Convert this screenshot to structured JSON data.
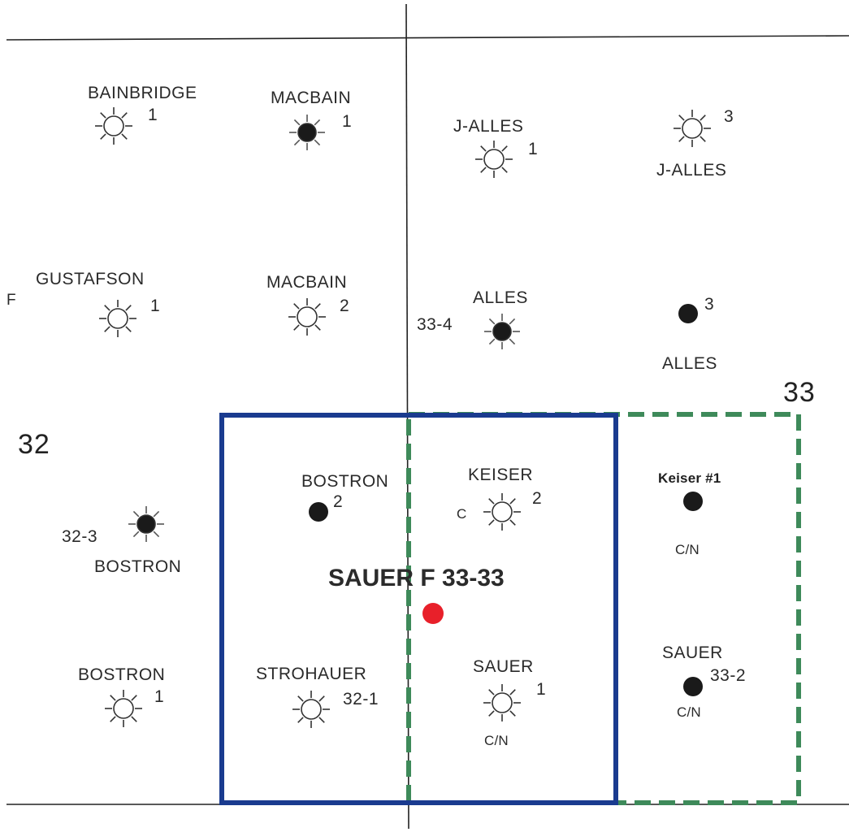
{
  "colors": {
    "section_line": "#222222",
    "blue_box": "#1a3b8f",
    "green_box": "#3e8a5a",
    "proposed_well": "#e8202a",
    "well_dark": "#1a1a1a"
  },
  "map": {
    "title": "SAUER F 33-33",
    "sections": [
      "32",
      "33"
    ],
    "edge_label": "F",
    "wells": [
      {
        "id": "bainbridge-1",
        "name": "BAINBRIDGE",
        "number": "1",
        "symbol": "dry-hole-icon"
      },
      {
        "id": "macbain-1",
        "name": "MACBAIN",
        "number": "1",
        "symbol": "oil-well-icon"
      },
      {
        "id": "j-alles-1",
        "name": "J-ALLES",
        "number": "1",
        "symbol": "dry-hole-icon"
      },
      {
        "id": "j-alles-3",
        "name": "J-ALLES",
        "number": "3",
        "symbol": "dry-hole-icon"
      },
      {
        "id": "gustafson-1",
        "name": "GUSTAFSON",
        "number": "1",
        "symbol": "dry-hole-icon"
      },
      {
        "id": "macbain-2",
        "name": "MACBAIN",
        "number": "2",
        "symbol": "dry-hole-icon"
      },
      {
        "id": "alles-33-4",
        "name": "ALLES",
        "number": "33-4",
        "symbol": "oil-well-icon"
      },
      {
        "id": "alles-3",
        "name": "ALLES",
        "number": "3",
        "symbol": "well-location-icon"
      },
      {
        "id": "bostron-32-3",
        "name": "BOSTRON",
        "number": "32-3",
        "symbol": "oil-well-icon"
      },
      {
        "id": "bostron-2",
        "name": "BOSTRON",
        "number": "2",
        "symbol": "well-location-icon"
      },
      {
        "id": "keiser-2",
        "name": "KEISER",
        "number": "2",
        "prefix": "C",
        "symbol": "dry-hole-icon"
      },
      {
        "id": "keiser-1",
        "name": "Keiser #1",
        "status": "C/N",
        "symbol": "well-location-icon"
      },
      {
        "id": "bostron-1",
        "name": "BOSTRON",
        "number": "1",
        "symbol": "dry-hole-icon"
      },
      {
        "id": "strohauer-32-1",
        "name": "STROHAUER",
        "number": "32-1",
        "symbol": "dry-hole-icon"
      },
      {
        "id": "sauer-1",
        "name": "SAUER",
        "number": "1",
        "status": "C/N",
        "symbol": "dry-hole-icon"
      },
      {
        "id": "sauer-33-2",
        "name": "SAUER",
        "number": "33-2",
        "status": "C/N",
        "symbol": "well-location-icon"
      }
    ],
    "proposed_well": {
      "symbol": "proposed-location-icon"
    }
  }
}
